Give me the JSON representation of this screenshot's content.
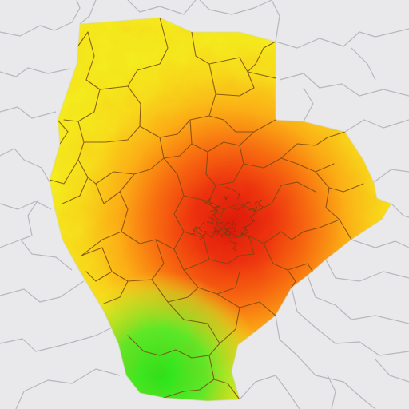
{
  "map": {
    "type": "choropleth-heatmap",
    "legend": null,
    "colors": {
      "background": "#e9e9eb",
      "neighbor_borders": "#b7b7bd",
      "inner_borders": "#7a4a12",
      "heat_high": "#e8150e",
      "heat_mid": "#f79a12",
      "heat_low": "#f6ef1f",
      "cool": "#2ee61f"
    }
  }
}
